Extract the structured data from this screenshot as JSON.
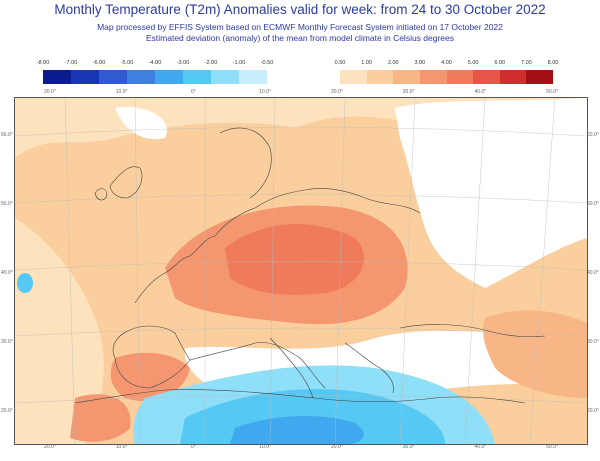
{
  "header": {
    "title": "Monthly Temperature (T2m) Anomalies valid for week: from 24 to 30 October 2022",
    "line1": "Map processed by EFFIS System based on ECMWF Monthly Forecast System initiated on 17 October 2022",
    "line2": "Estimated deviation (anomaly) of the mean from model climate in Celsius degrees"
  },
  "legend_negative": {
    "labels": [
      "-8.00",
      "-7.00",
      "-6.00",
      "-5.00",
      "-4.00",
      "-3.00",
      "-2.00",
      "-1.00",
      "-0.50"
    ],
    "colors": [
      "#0b1a8c",
      "#1836b4",
      "#2f5bd1",
      "#3f7fe0",
      "#3fa8ee",
      "#55c8f3",
      "#8fdff8",
      "#c6effb"
    ]
  },
  "legend_positive": {
    "labels": [
      "0.50",
      "1.00",
      "2.00",
      "3.00",
      "4.00",
      "5.00",
      "6.00",
      "7.00",
      "8.00"
    ],
    "colors": [
      "#fde3bd",
      "#fbcf9d",
      "#f8b585",
      "#f49770",
      "#ef7a5c",
      "#e65646",
      "#cf2e2e",
      "#a30f14"
    ]
  },
  "map": {
    "top_ticks": [
      "20.0°",
      "10.0°",
      "0°",
      "10.0°",
      "20.0°",
      "30.0°",
      "40.0°",
      "50.0°"
    ],
    "bottom_ticks": [
      "20.0°",
      "10.0°",
      "0°",
      "10.0°",
      "20.0°",
      "30.0°",
      "40.0°",
      "50.0°"
    ],
    "left_ticks": [
      "60.0°",
      "50.0°",
      "40.0°",
      "30.0°",
      "20.0°"
    ],
    "right_ticks": [
      "60.0°",
      "50.0°",
      "40.0°",
      "30.0°",
      "20.0°"
    ]
  }
}
